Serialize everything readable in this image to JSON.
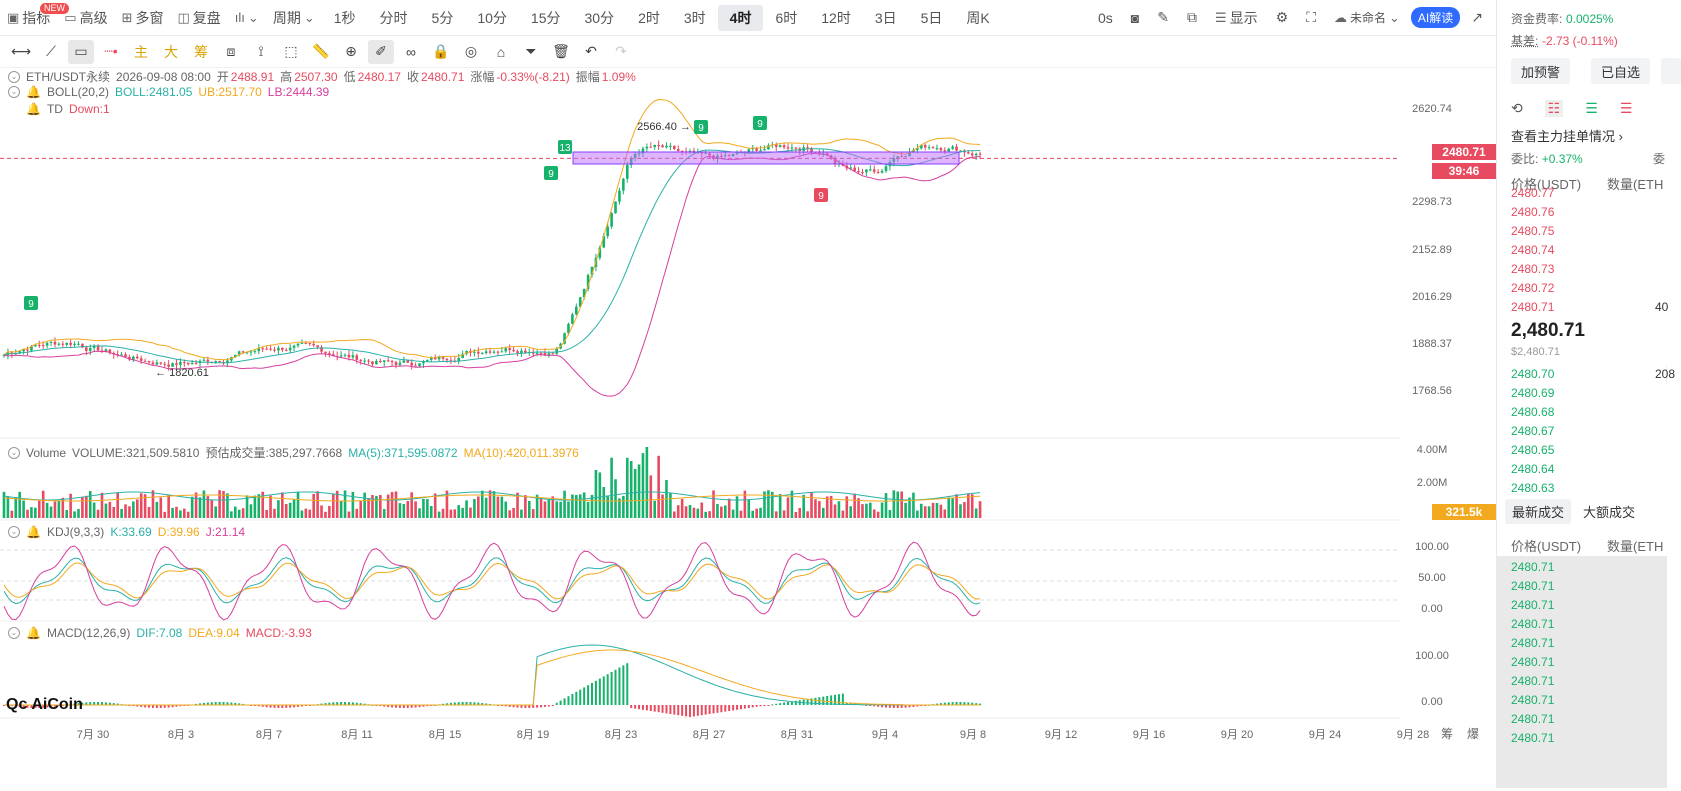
{
  "toolbar": {
    "indicators_label": "指标",
    "new_badge": "NEW",
    "advanced_label": "高级",
    "multi_window_label": "多窗",
    "replay_label": "复盘",
    "period_label": "周期",
    "periods": [
      "1秒",
      "分时",
      "5分",
      "10分",
      "15分",
      "30分",
      "2时",
      "3时",
      "4时",
      "6时",
      "12时",
      "3日",
      "5日",
      "周K"
    ],
    "active_period": "4时",
    "countdown_label": "0s",
    "display_label": "显示",
    "layout_name": "未命名",
    "ai_label": "AI解读"
  },
  "draw_toolbar": {
    "main_label": "主",
    "large_label": "大",
    "chip_label": "筹"
  },
  "chart": {
    "symbol_line": "ETH/USDT永续",
    "datetime": "2026-09-08 08:00",
    "open_label": "开",
    "open": "2488.91",
    "high_label": "高",
    "high": "2507.30",
    "low_label": "低",
    "low": "2480.17",
    "close_label": "收",
    "close": "2480.71",
    "change_label": "涨幅",
    "change": "-0.33%(-8.21)",
    "amplitude_label": "振幅",
    "amplitude": "1.09%",
    "boll_label": "BOLL(20,2)",
    "boll_mid": "BOLL:2481.05",
    "boll_ub": "UB:2517.70",
    "boll_lb": "LB:2444.39",
    "td_label": "TD",
    "td_value": "Down:1",
    "price_axis": [
      "2620.74",
      "2298.73",
      "2152.89",
      "2016.29",
      "1888.37",
      "1768.56"
    ],
    "last_price_tag": "2480.71",
    "countdown_tag": "39:46",
    "max_annotation": "2566.40 →",
    "min_annotation": "← 1820.61",
    "volume_label": "Volume",
    "volume_value": "VOLUME:321,509.5810",
    "volume_est": "预估成交量:385,297.7668",
    "volume_ma5": "MA(5):371,595.0872",
    "volume_ma10": "MA(10):420,011.3976",
    "volume_axis": [
      "4.00M",
      "2.00M"
    ],
    "volume_tag": "321.5k",
    "kdj_label": "KDJ(9,3,3)",
    "kdj_k": "K:33.69",
    "kdj_d": "D:39.96",
    "kdj_j": "J:21.14",
    "kdj_axis": [
      "100.00",
      "50.00",
      "0.00"
    ],
    "macd_label": "MACD(12,26,9)",
    "macd_dif": "DIF:7.08",
    "macd_dea": "DEA:9.04",
    "macd_value": "MACD:-3.93",
    "macd_axis": [
      "100.00",
      "0.00"
    ],
    "dates": [
      "7月 30",
      "8月 3",
      "8月 7",
      "8月 11",
      "8月 15",
      "8月 19",
      "8月 23",
      "8月 27",
      "8月 31",
      "9月 4",
      "9月 8",
      "9月 12",
      "9月 16",
      "9月 20",
      "9月 24",
      "9月 28"
    ],
    "date_suffix_a": "筹",
    "date_suffix_b": "爆",
    "td_markers": [
      "9",
      "13",
      "9",
      "9",
      "9",
      "9"
    ],
    "logo_text": "AiCoin"
  },
  "right_panel": {
    "funding_label": "资金费率:",
    "funding_value": "0.0025%",
    "basis_label": "基差:",
    "basis_value": "-2.73 (-0.11%)",
    "alert_btn": "加预警",
    "watch_btn": "已自选",
    "depth_link": "查看主力挂单情况",
    "ratio_label": "委比:",
    "ratio_value": "+0.37%",
    "ratio_label2": "委",
    "price_header": "价格(USDT)",
    "qty_header": "数量(ETH",
    "asks": [
      "2480.77",
      "2480.76",
      "2480.75",
      "2480.74",
      "2480.73",
      "2480.72",
      "2480.71"
    ],
    "last_price": "2,480.71",
    "last_price_usd": "$2,480.71",
    "bids": [
      "2480.70",
      "2480.69",
      "2480.68",
      "2480.67",
      "2480.65",
      "2480.64",
      "2480.63"
    ],
    "ask_qty_last": "40",
    "bid_qty_first": "208",
    "tab_latest": "最新成交",
    "tab_large": "大额成交",
    "trades_price_header": "价格(USDT)",
    "trades_qty_header": "数量(ETH",
    "trades": [
      "2480.71",
      "2480.71",
      "2480.71",
      "2480.71",
      "2480.71",
      "2480.71",
      "2480.71",
      "2480.71",
      "2480.71",
      "2480.71"
    ]
  },
  "colors": {
    "up": "#16b26b",
    "down": "#e84a5f",
    "boll_mid": "#2ab0a8",
    "boll_ub": "#f2a91e",
    "boll_lb": "#d63f9e",
    "accent": "#2f6bff"
  }
}
